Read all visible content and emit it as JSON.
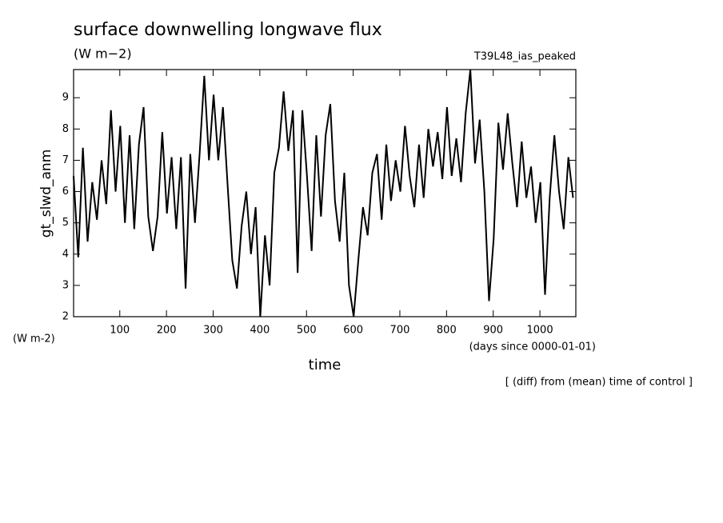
{
  "chart_data": {
    "type": "line",
    "title": "surface downwelling longwave flux",
    "subtitle": "(W m−2)",
    "run_label": "T39L48_ias_peaked",
    "y_label": "gt_slwd_anm",
    "y_units": "(W m-2)",
    "x_label": "time",
    "x_units": "(days since 0000-01-01)",
    "note": "[ (diff) from (mean) time of control ]",
    "xlim": [
      1,
      1077
    ],
    "ylim": [
      2,
      9.9
    ],
    "xticks": [
      100,
      200,
      300,
      400,
      500,
      600,
      700,
      800,
      900,
      1000
    ],
    "yticks": [
      2,
      3,
      4,
      5,
      6,
      7,
      8,
      9
    ],
    "x": [
      1,
      11,
      21,
      31,
      41,
      51,
      61,
      71,
      81,
      91,
      101,
      111,
      121,
      131,
      141,
      151,
      161,
      171,
      181,
      191,
      201,
      211,
      221,
      231,
      241,
      251,
      261,
      271,
      281,
      291,
      301,
      311,
      321,
      331,
      341,
      351,
      361,
      371,
      381,
      391,
      401,
      411,
      421,
      431,
      441,
      451,
      461,
      471,
      481,
      491,
      501,
      511,
      521,
      531,
      541,
      551,
      561,
      571,
      581,
      591,
      601,
      611,
      621,
      631,
      641,
      651,
      661,
      671,
      681,
      691,
      701,
      711,
      721,
      731,
      741,
      751,
      761,
      771,
      781,
      791,
      801,
      811,
      821,
      831,
      841,
      851,
      861,
      871,
      881,
      891,
      901,
      911,
      921,
      931,
      941,
      951,
      961,
      971,
      981,
      991,
      1001,
      1011,
      1021,
      1031,
      1041,
      1051,
      1061,
      1071
    ],
    "series": [
      {
        "color": "#000000",
        "values": [
          6.5,
          3.9,
          7.4,
          4.4,
          6.3,
          5.1,
          7.0,
          5.6,
          8.6,
          6.0,
          8.1,
          5.0,
          7.8,
          4.8,
          7.5,
          8.7,
          5.2,
          4.1,
          5.2,
          7.9,
          5.3,
          7.1,
          4.8,
          7.1,
          2.9,
          7.2,
          5.0,
          7.2,
          9.7,
          7.0,
          9.1,
          7.0,
          8.7,
          6.2,
          3.8,
          2.9,
          4.9,
          6.0,
          4.0,
          5.5,
          2.0,
          4.6,
          3.0,
          6.6,
          7.4,
          9.2,
          7.3,
          8.6,
          3.4,
          8.6,
          6.5,
          4.1,
          7.8,
          5.2,
          7.8,
          8.8,
          5.7,
          4.4,
          6.6,
          3.0,
          2.0,
          3.8,
          5.5,
          4.6,
          6.6,
          7.2,
          5.1,
          7.5,
          5.7,
          7.0,
          6.0,
          8.1,
          6.5,
          5.5,
          7.5,
          5.8,
          8.0,
          6.8,
          7.9,
          6.4,
          8.7,
          6.5,
          7.7,
          6.3,
          8.5,
          9.9,
          6.9,
          8.3,
          6.0,
          2.5,
          4.5,
          8.2,
          6.7,
          8.5,
          6.9,
          5.5,
          7.6,
          5.8,
          6.8,
          5.0,
          6.3,
          2.7,
          5.8,
          7.8,
          6.0,
          4.8,
          7.1,
          5.8
        ]
      }
    ]
  }
}
